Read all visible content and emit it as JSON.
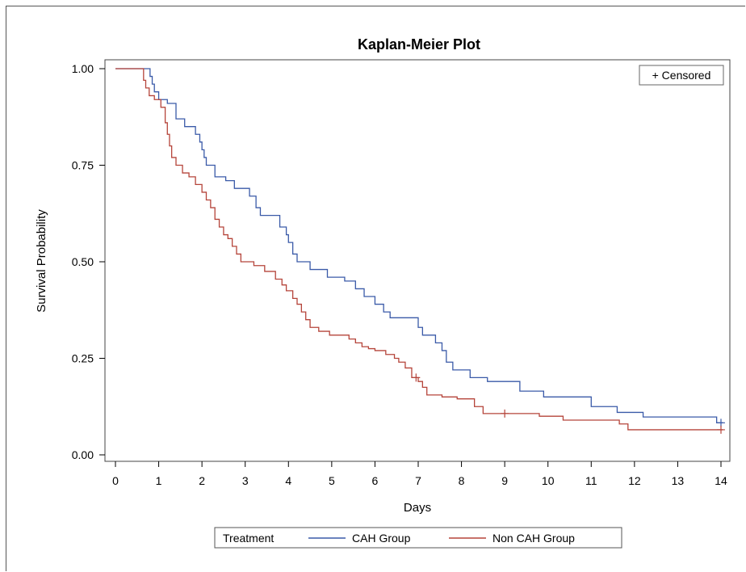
{
  "chart_data": {
    "type": "line",
    "title": "Kaplan-Meier Plot",
    "xlabel": "Days",
    "ylabel": "Survival Probability",
    "xlim": [
      0,
      14
    ],
    "ylim": [
      0,
      1
    ],
    "x_ticks": [
      "0",
      "1",
      "2",
      "3",
      "4",
      "5",
      "6",
      "7",
      "8",
      "9",
      "10",
      "11",
      "12",
      "13",
      "14"
    ],
    "y_ticks": [
      "0.00",
      "0.25",
      "0.50",
      "0.75",
      "1.00"
    ],
    "y_tick_values": [
      0,
      0.25,
      0.5,
      0.75,
      1.0
    ],
    "grid": false,
    "censor_legend": "+ Censored",
    "legend_title": "Treatment",
    "legend_placement": "bottom",
    "series": [
      {
        "name": "CAH Group",
        "color": "#3a5aa8",
        "step": [
          [
            0,
            1.0
          ],
          [
            0.78,
            1.0
          ],
          [
            0.8,
            0.98
          ],
          [
            0.85,
            0.96
          ],
          [
            0.9,
            0.94
          ],
          [
            1.0,
            0.92
          ],
          [
            1.2,
            0.91
          ],
          [
            1.4,
            0.87
          ],
          [
            1.6,
            0.85
          ],
          [
            1.85,
            0.83
          ],
          [
            1.95,
            0.81
          ],
          [
            2.0,
            0.79
          ],
          [
            2.05,
            0.77
          ],
          [
            2.1,
            0.75
          ],
          [
            2.3,
            0.72
          ],
          [
            2.55,
            0.71
          ],
          [
            2.75,
            0.69
          ],
          [
            3.1,
            0.67
          ],
          [
            3.25,
            0.64
          ],
          [
            3.35,
            0.62
          ],
          [
            3.8,
            0.59
          ],
          [
            3.95,
            0.57
          ],
          [
            4.0,
            0.55
          ],
          [
            4.1,
            0.52
          ],
          [
            4.2,
            0.5
          ],
          [
            4.5,
            0.48
          ],
          [
            4.9,
            0.46
          ],
          [
            5.3,
            0.45
          ],
          [
            5.55,
            0.43
          ],
          [
            5.75,
            0.41
          ],
          [
            6.0,
            0.39
          ],
          [
            6.2,
            0.37
          ],
          [
            6.35,
            0.355
          ],
          [
            7.0,
            0.33
          ],
          [
            7.1,
            0.31
          ],
          [
            7.4,
            0.29
          ],
          [
            7.55,
            0.27
          ],
          [
            7.65,
            0.24
          ],
          [
            7.8,
            0.22
          ],
          [
            8.2,
            0.2
          ],
          [
            8.6,
            0.19
          ],
          [
            9.35,
            0.165
          ],
          [
            9.9,
            0.15
          ],
          [
            11.0,
            0.125
          ],
          [
            11.6,
            0.11
          ],
          [
            12.2,
            0.098
          ],
          [
            13.0,
            0.098
          ],
          [
            13.9,
            0.083
          ],
          [
            14.05,
            0.083
          ]
        ],
        "censored": [
          [
            14.0,
            0.083
          ]
        ]
      },
      {
        "name": "Non CAH Group",
        "color": "#b5443a",
        "step": [
          [
            0,
            1.0
          ],
          [
            0.62,
            1.0
          ],
          [
            0.65,
            0.97
          ],
          [
            0.7,
            0.95
          ],
          [
            0.78,
            0.93
          ],
          [
            0.9,
            0.92
          ],
          [
            1.05,
            0.9
          ],
          [
            1.15,
            0.86
          ],
          [
            1.2,
            0.83
          ],
          [
            1.25,
            0.8
          ],
          [
            1.3,
            0.77
          ],
          [
            1.4,
            0.75
          ],
          [
            1.55,
            0.73
          ],
          [
            1.7,
            0.72
          ],
          [
            1.85,
            0.7
          ],
          [
            2.0,
            0.68
          ],
          [
            2.1,
            0.66
          ],
          [
            2.2,
            0.64
          ],
          [
            2.3,
            0.61
          ],
          [
            2.4,
            0.59
          ],
          [
            2.5,
            0.57
          ],
          [
            2.6,
            0.56
          ],
          [
            2.7,
            0.54
          ],
          [
            2.8,
            0.52
          ],
          [
            2.9,
            0.5
          ],
          [
            3.2,
            0.49
          ],
          [
            3.45,
            0.475
          ],
          [
            3.7,
            0.455
          ],
          [
            3.85,
            0.44
          ],
          [
            3.95,
            0.425
          ],
          [
            4.1,
            0.405
          ],
          [
            4.2,
            0.39
          ],
          [
            4.3,
            0.37
          ],
          [
            4.4,
            0.35
          ],
          [
            4.5,
            0.33
          ],
          [
            4.7,
            0.32
          ],
          [
            4.95,
            0.31
          ],
          [
            5.4,
            0.3
          ],
          [
            5.55,
            0.29
          ],
          [
            5.7,
            0.28
          ],
          [
            5.85,
            0.275
          ],
          [
            6.0,
            0.27
          ],
          [
            6.25,
            0.26
          ],
          [
            6.45,
            0.25
          ],
          [
            6.55,
            0.24
          ],
          [
            6.7,
            0.225
          ],
          [
            6.85,
            0.2
          ],
          [
            7.0,
            0.19
          ],
          [
            7.1,
            0.175
          ],
          [
            7.2,
            0.155
          ],
          [
            7.55,
            0.15
          ],
          [
            7.9,
            0.145
          ],
          [
            8.3,
            0.125
          ],
          [
            8.5,
            0.107
          ],
          [
            9.8,
            0.1
          ],
          [
            10.35,
            0.09
          ],
          [
            11.65,
            0.08
          ],
          [
            11.85,
            0.065
          ],
          [
            14.05,
            0.065
          ]
        ],
        "censored": [
          [
            6.95,
            0.2
          ],
          [
            9.0,
            0.107
          ],
          [
            14.0,
            0.065
          ]
        ]
      }
    ]
  }
}
